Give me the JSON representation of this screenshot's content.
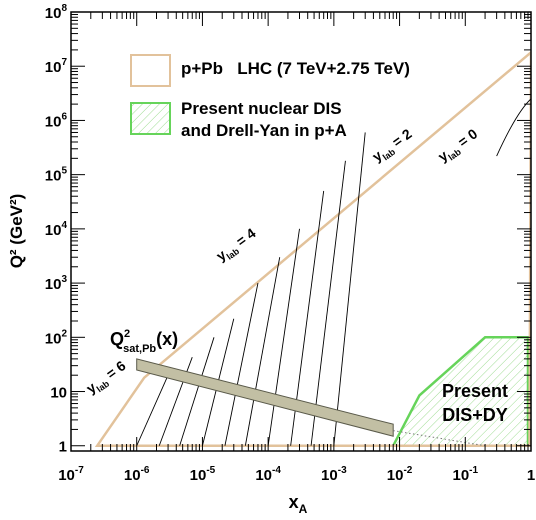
{
  "chart_data": {
    "type": "line",
    "xlabel": "x",
    "xlabel_sub": "A",
    "ylabel": "Q² (GeV²)",
    "xscale": "log",
    "yscale": "log",
    "xlim": [
      1e-07,
      1
    ],
    "ylim": [
      0.8,
      100000000.0
    ],
    "x_ticks": [
      {
        "base": "10",
        "exp": "-7",
        "value": 1e-07
      },
      {
        "base": "10",
        "exp": "-6",
        "value": 1e-06
      },
      {
        "base": "10",
        "exp": "-5",
        "value": 1e-05
      },
      {
        "base": "10",
        "exp": "-4",
        "value": 0.0001
      },
      {
        "base": "10",
        "exp": "-3",
        "value": 0.001
      },
      {
        "base": "10",
        "exp": "-2",
        "value": 0.01
      },
      {
        "base": "10",
        "exp": "-1",
        "value": 0.1
      },
      {
        "base": "1",
        "exp": "",
        "value": 1
      }
    ],
    "y_ticks": [
      {
        "base": "1",
        "exp": "",
        "value": 1
      },
      {
        "base": "10",
        "exp": "",
        "value": 10
      },
      {
        "base": "10",
        "exp": "2",
        "value": 100
      },
      {
        "base": "10",
        "exp": "3",
        "value": 1000
      },
      {
        "base": "10",
        "exp": "4",
        "value": 10000
      },
      {
        "base": "10",
        "exp": "5",
        "value": 100000
      },
      {
        "base": "10",
        "exp": "6",
        "value": 1000000
      },
      {
        "base": "10",
        "exp": "7",
        "value": 10000000
      },
      {
        "base": "10",
        "exp": "8",
        "value": 100000000
      }
    ],
    "legend": [
      {
        "label_lines": [
          "p+Pb   LHC (7 TeV+2.75 TeV)"
        ],
        "edge": "#e2c29b",
        "fill": "none"
      },
      {
        "label_lines": [
          "Present nuclear DIS",
          "and Drell-Yan in p+A"
        ],
        "edge": "#66d45a",
        "fill": "hatch"
      }
    ],
    "lhc_region": {
      "edge_color": "#e2c29b",
      "points": [
        [
          2.5e-07,
          1
        ],
        [
          0.95,
          1
        ],
        [
          1,
          18000000.0
        ],
        [
          1.3e-06,
          18
        ]
      ]
    },
    "dis_dy_region": {
      "edge_color": "#66d45a",
      "points": [
        [
          0.008,
          1
        ],
        [
          0.9,
          1
        ],
        [
          0.9,
          100
        ],
        [
          0.2,
          100
        ],
        [
          0.02,
          8.5
        ]
      ]
    },
    "rapidity_lines": [
      {
        "label": "6",
        "points": [
          [
            1e-06,
            1
          ],
          [
            3e-06,
            20
          ]
        ]
      },
      {
        "label": "",
        "points": [
          [
            2.2e-06,
            1
          ],
          [
            7e-06,
            43
          ]
        ]
      },
      {
        "label": "",
        "points": [
          [
            4.5e-06,
            1
          ],
          [
            1.5e-05,
            100
          ]
        ]
      },
      {
        "label": "",
        "points": [
          [
            1e-05,
            1
          ],
          [
            3e-05,
            220
          ]
        ]
      },
      {
        "label": "4",
        "points": [
          [
            2.2e-05,
            1
          ],
          [
            7e-05,
            1000
          ]
        ]
      },
      {
        "label": "",
        "points": [
          [
            4.5e-05,
            1
          ],
          [
            0.00015,
            3000
          ]
        ]
      },
      {
        "label": "",
        "points": [
          [
            0.0001,
            1
          ],
          [
            0.0003,
            10000
          ]
        ]
      },
      {
        "label": "",
        "points": [
          [
            0.00022,
            1
          ],
          [
            0.0007,
            50000
          ]
        ]
      },
      {
        "label": "",
        "points": [
          [
            0.00045,
            1
          ],
          [
            0.0015,
            180000
          ]
        ]
      },
      {
        "label": "2",
        "points": [
          [
            0.001,
            1
          ],
          [
            0.003,
            600000
          ]
        ]
      },
      {
        "label": "0",
        "points": [
          [
            0.3,
            220000
          ],
          [
            0.6,
            1400000
          ],
          [
            1,
            2500000
          ]
        ]
      }
    ],
    "y_lab_labels": [
      {
        "prefix": "y",
        "sub": "lab",
        "value": "6",
        "x": 2e-07,
        "y": 9
      },
      {
        "prefix": "y",
        "sub": "lab",
        "value": "4",
        "x": 1.9e-05,
        "y": 2500
      },
      {
        "prefix": "y",
        "sub": "lab",
        "value": "2",
        "x": 0.0045,
        "y": 170000
      },
      {
        "prefix": "y",
        "sub": "lab",
        "value": "0",
        "x": 0.045,
        "y": 170000
      }
    ],
    "qsat_band": {
      "label_base": "Q",
      "label_sup": "2",
      "label_sub": "sat,Pb",
      "label_tail": "(x)",
      "fill": "#c2bfa4",
      "points": [
        [
          1e-06,
          40
        ],
        [
          1e-06,
          25
        ],
        [
          0.008,
          1.5
        ],
        [
          0.008,
          2.5
        ]
      ],
      "dotted_extension": [
        [
          0.008,
          1.9
        ],
        [
          0.2,
          1.0
        ]
      ]
    },
    "annotation": [
      "Present",
      "DIS+DY"
    ]
  }
}
